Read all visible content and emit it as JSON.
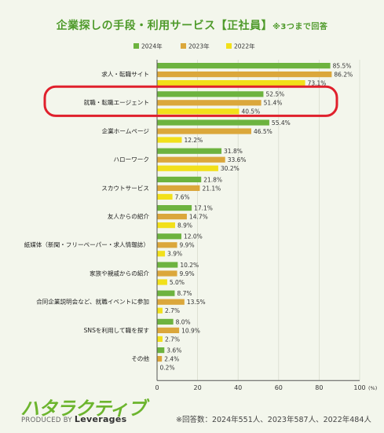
{
  "title": "企業探しの手段・利用サービス【正社員】",
  "title_note": "※3つまで回答",
  "chart_data": {
    "type": "bar",
    "orientation": "horizontal",
    "categories": [
      "求人・転職サイト",
      "就職・転職エージェント",
      "企業ホームページ",
      "ハローワーク",
      "スカウトサービス",
      "友人からの紹介",
      "紙媒体（新聞・フリーペーパー・求人情報誌）",
      "家族や親戚からの紹介",
      "合同企業説明会など、就職イベントに参加",
      "SNSを利用して職を探す",
      "その他"
    ],
    "series": [
      {
        "name": "2024年",
        "color": "#6db33f",
        "values": [
          85.5,
          52.5,
          55.4,
          31.8,
          21.8,
          17.1,
          12.0,
          10.2,
          8.7,
          8.0,
          3.6
        ]
      },
      {
        "name": "2023年",
        "color": "#dba73b",
        "values": [
          86.2,
          51.4,
          46.5,
          33.6,
          21.1,
          14.7,
          9.9,
          9.9,
          13.5,
          10.9,
          2.4
        ]
      },
      {
        "name": "2022年",
        "color": "#f2e01a",
        "values": [
          73.1,
          40.5,
          12.2,
          30.2,
          7.6,
          8.9,
          3.9,
          5.0,
          2.7,
          2.7,
          0.2
        ]
      }
    ],
    "xlim": [
      0,
      100
    ],
    "x_ticks": [
      "0",
      "20",
      "40",
      "60",
      "80",
      "100"
    ],
    "x_unit": "(%)",
    "value_suffix": "%",
    "legend_position": "top",
    "highlight_category": "就職・転職エージェント",
    "highlight_color": "#e0202c"
  },
  "footer": {
    "logo": "ハタラクティブ",
    "produced_by_prefix": "PRODUCED BY",
    "produced_by_brand": "Leverages",
    "respondents_note": "※回答数：2024年551人、2023年587人、2022年484人"
  }
}
